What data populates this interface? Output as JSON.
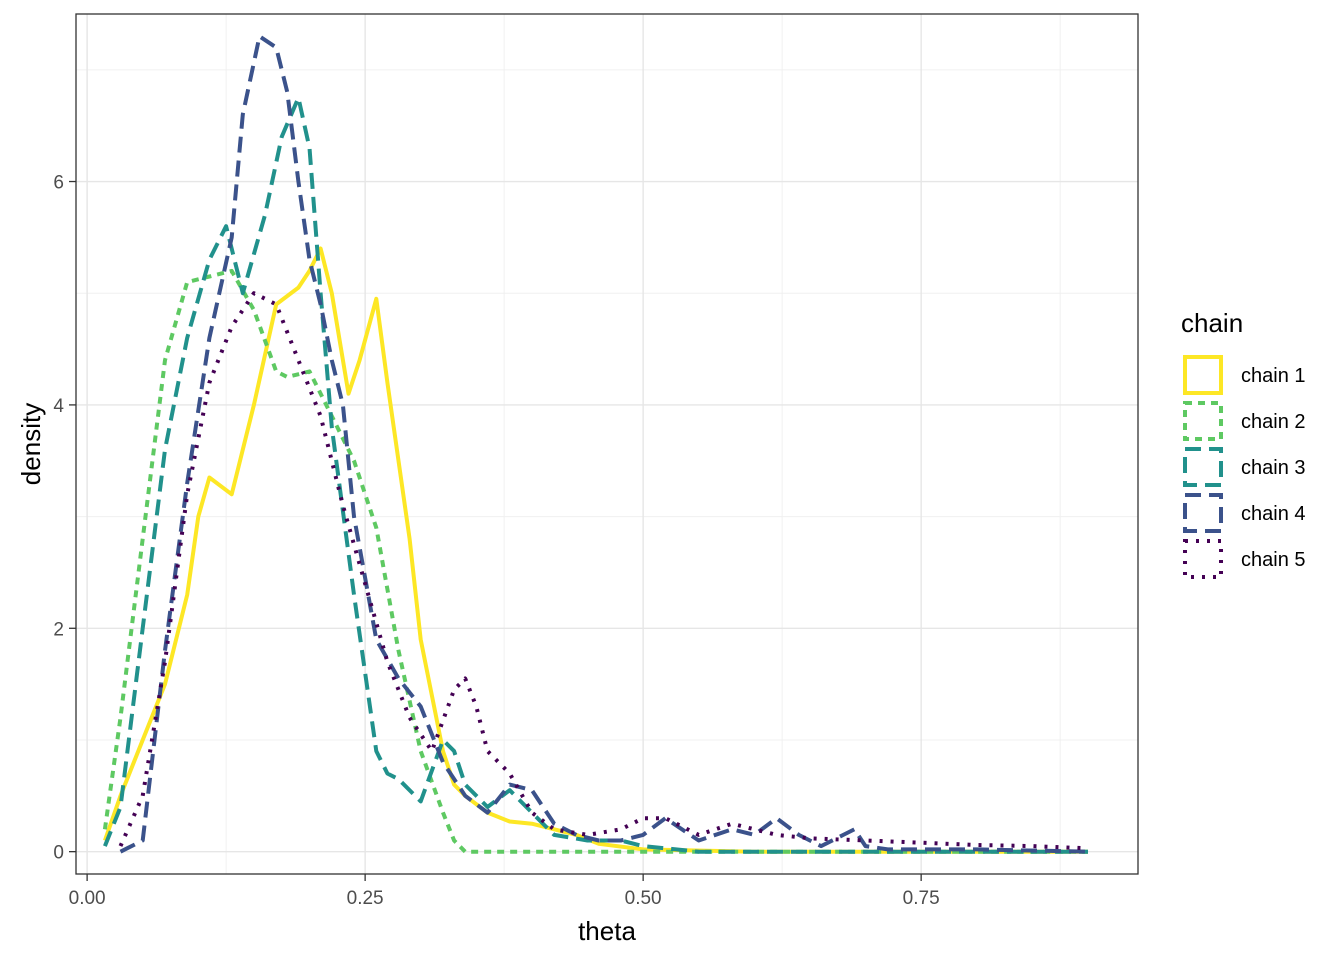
{
  "chart_data": {
    "type": "line",
    "title": "",
    "xlabel": "theta",
    "ylabel": "density",
    "xlim": [
      -0.01,
      0.945
    ],
    "ylim": [
      -0.2,
      7.5
    ],
    "xticks": [
      0.0,
      0.25,
      0.5,
      0.75
    ],
    "xtick_labels": [
      "0.00",
      "0.25",
      "0.50",
      "0.75"
    ],
    "yticks": [
      0,
      2,
      4,
      6
    ],
    "ytick_labels": [
      "0",
      "2",
      "4",
      "6"
    ],
    "grid": true,
    "legend": {
      "title": "chain",
      "placement": "right"
    },
    "series": [
      {
        "name": "chain 1",
        "color": "#fde725",
        "dash": "solid",
        "x": [
          0.016,
          0.03,
          0.05,
          0.07,
          0.09,
          0.1,
          0.11,
          0.13,
          0.15,
          0.17,
          0.19,
          0.2,
          0.21,
          0.22,
          0.235,
          0.245,
          0.26,
          0.27,
          0.29,
          0.3,
          0.32,
          0.33,
          0.34,
          0.36,
          0.38,
          0.4,
          0.42,
          0.44,
          0.46,
          0.5,
          0.6,
          0.7,
          0.8,
          0.9
        ],
        "y": [
          0.1,
          0.5,
          1.0,
          1.5,
          2.3,
          3.0,
          3.35,
          3.2,
          4.0,
          4.9,
          5.05,
          5.2,
          5.4,
          5.0,
          4.1,
          4.4,
          4.95,
          4.2,
          2.8,
          1.9,
          0.9,
          0.6,
          0.5,
          0.35,
          0.27,
          0.25,
          0.2,
          0.15,
          0.07,
          0.02,
          0.0,
          0.0,
          0.0,
          0.0
        ]
      },
      {
        "name": "chain 2",
        "color": "#5ec962",
        "dash": "short",
        "x": [
          0.016,
          0.03,
          0.05,
          0.07,
          0.09,
          0.11,
          0.13,
          0.15,
          0.17,
          0.18,
          0.2,
          0.22,
          0.24,
          0.26,
          0.28,
          0.3,
          0.32,
          0.33,
          0.34,
          0.4,
          0.5,
          0.6,
          0.7,
          0.8,
          0.9
        ],
        "y": [
          0.2,
          1.2,
          2.8,
          4.4,
          5.1,
          5.15,
          5.2,
          4.85,
          4.3,
          4.25,
          4.3,
          3.9,
          3.5,
          2.9,
          1.8,
          0.9,
          0.35,
          0.1,
          0.0,
          0.0,
          0.0,
          0.0,
          0.0,
          0.0,
          0.0
        ]
      },
      {
        "name": "chain 3",
        "color": "#21918c",
        "dash": "long",
        "x": [
          0.016,
          0.03,
          0.05,
          0.07,
          0.09,
          0.11,
          0.125,
          0.14,
          0.16,
          0.175,
          0.19,
          0.2,
          0.21,
          0.22,
          0.24,
          0.26,
          0.27,
          0.28,
          0.3,
          0.32,
          0.33,
          0.34,
          0.36,
          0.38,
          0.4,
          0.42,
          0.45,
          0.48,
          0.5,
          0.55,
          0.6,
          0.7,
          0.8,
          0.9
        ],
        "y": [
          0.05,
          0.4,
          2.0,
          3.6,
          4.6,
          5.3,
          5.6,
          5.0,
          5.7,
          6.4,
          6.75,
          6.3,
          5.0,
          3.8,
          2.3,
          0.9,
          0.7,
          0.65,
          0.45,
          1.0,
          0.9,
          0.6,
          0.4,
          0.55,
          0.35,
          0.15,
          0.1,
          0.1,
          0.05,
          0.0,
          0.0,
          0.0,
          0.0,
          0.0
        ]
      },
      {
        "name": "chain 4",
        "color": "#3b528b",
        "dash": "long",
        "x": [
          0.03,
          0.05,
          0.07,
          0.09,
          0.11,
          0.13,
          0.14,
          0.155,
          0.17,
          0.18,
          0.19,
          0.2,
          0.21,
          0.22,
          0.23,
          0.24,
          0.26,
          0.28,
          0.3,
          0.32,
          0.34,
          0.36,
          0.38,
          0.4,
          0.42,
          0.44,
          0.46,
          0.48,
          0.5,
          0.52,
          0.55,
          0.58,
          0.6,
          0.62,
          0.64,
          0.66,
          0.68,
          0.69,
          0.7,
          0.72,
          0.8,
          0.9
        ],
        "y": [
          0.0,
          0.1,
          1.8,
          3.3,
          4.6,
          5.5,
          6.6,
          7.3,
          7.2,
          6.8,
          6.0,
          5.3,
          4.9,
          4.4,
          4.0,
          3.0,
          1.9,
          1.55,
          1.3,
          0.8,
          0.5,
          0.35,
          0.6,
          0.55,
          0.25,
          0.15,
          0.1,
          0.1,
          0.15,
          0.3,
          0.1,
          0.2,
          0.15,
          0.3,
          0.15,
          0.05,
          0.15,
          0.2,
          0.05,
          0.02,
          0.02,
          0.0
        ]
      },
      {
        "name": "chain 5",
        "color": "#440154",
        "dash": "dotted",
        "x": [
          0.03,
          0.05,
          0.07,
          0.09,
          0.11,
          0.13,
          0.15,
          0.17,
          0.19,
          0.21,
          0.23,
          0.25,
          0.27,
          0.29,
          0.31,
          0.33,
          0.34,
          0.35,
          0.36,
          0.38,
          0.4,
          0.42,
          0.45,
          0.48,
          0.5,
          0.52,
          0.55,
          0.58,
          0.6,
          0.62,
          0.65,
          0.7,
          0.75,
          0.8,
          0.85,
          0.9
        ],
        "y": [
          0.05,
          0.5,
          1.7,
          3.2,
          4.2,
          4.7,
          5.0,
          4.9,
          4.4,
          3.9,
          3.1,
          2.4,
          1.7,
          1.2,
          0.9,
          1.45,
          1.55,
          1.3,
          0.9,
          0.7,
          0.35,
          0.2,
          0.15,
          0.2,
          0.3,
          0.3,
          0.15,
          0.25,
          0.2,
          0.15,
          0.12,
          0.1,
          0.08,
          0.06,
          0.05,
          0.03
        ]
      }
    ]
  }
}
